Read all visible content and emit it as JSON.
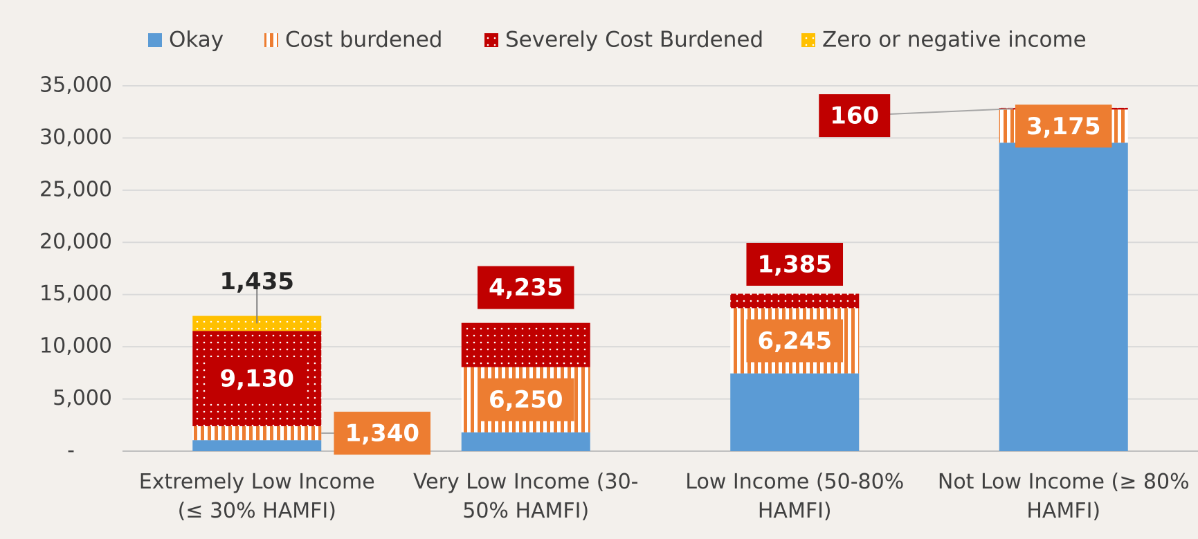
{
  "chart_data": {
    "type": "stacked-bar",
    "categories": [
      "Extremely Low Income (≤ 30% HAMFI)",
      "Very Low Income (30-50% HAMFI)",
      "Low Income (50-80% HAMFI)",
      "Not Low Income (≥ 80% HAMFI)"
    ],
    "series": [
      {
        "name": "Okay",
        "color": "#5b9bd5",
        "pattern": "solid",
        "values": [
          1050,
          1800,
          7450,
          29550
        ]
      },
      {
        "name": "Cost burdened",
        "color": "#ed7d31",
        "pattern": "vertical-stripes",
        "values": [
          1340,
          6250,
          6245,
          3175
        ],
        "value_labels": [
          "1,340",
          "6,250",
          "6,245",
          "3,175"
        ]
      },
      {
        "name": "Severely Cost Burdened",
        "color": "#c00000",
        "pattern": "dots",
        "values": [
          9130,
          4235,
          1385,
          160
        ],
        "value_labels": [
          "9,130",
          "4,235",
          "1,385",
          "160"
        ]
      },
      {
        "name": "Zero or negative income",
        "color": "#ffc000",
        "pattern": "dots",
        "values": [
          1435,
          null,
          null,
          null
        ],
        "value_labels": [
          "1,435",
          null,
          null,
          null
        ]
      }
    ],
    "ylim": [
      0,
      35000
    ],
    "yticks": [
      {
        "value": 0,
        "label": "-"
      },
      {
        "value": 5000,
        "label": "5,000"
      },
      {
        "value": 10000,
        "label": "10,000"
      },
      {
        "value": 15000,
        "label": "15,000"
      },
      {
        "value": 20000,
        "label": "20,000"
      },
      {
        "value": 25000,
        "label": "25,000"
      },
      {
        "value": 30000,
        "label": "30,000"
      },
      {
        "value": 35000,
        "label": "35,000"
      }
    ],
    "grid": true,
    "legend": "top"
  }
}
